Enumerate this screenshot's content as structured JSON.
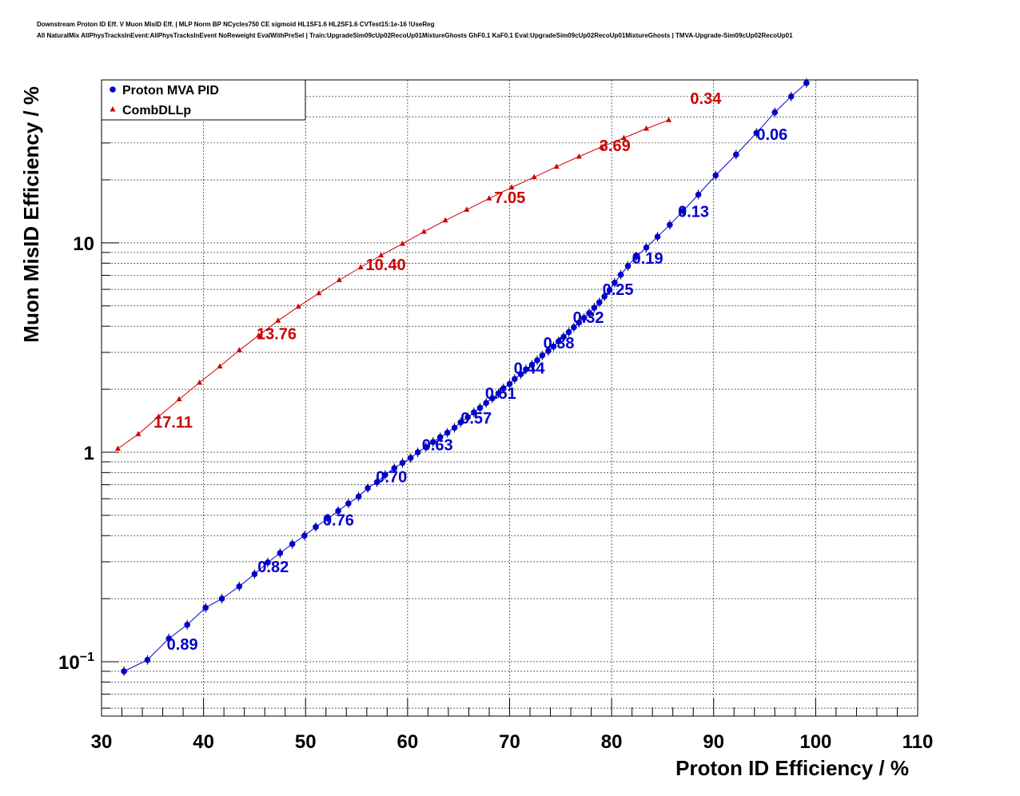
{
  "header": {
    "line1": "Downstream Proton ID Eff. V Muon MisID Eff. | MLP Norm BP NCycles750 CE sigmoid HL1SF1.6 HL2SF1.6 CVTest15:1e-16 !UseReg",
    "line2": "All NaturalMix AllPhysTracksInEvent:AllPhysTracksInEvent NoReweight EvalWithPreSel | Train:UpgradeSim09cUp02RecoUp01MixtureGhosts GhF0.1 KaF0.1 Eval:UpgradeSim09cUp02RecoUp01MixtureGhosts | TMVA-Upgrade-Sim09cUp02RecoUp01"
  },
  "chart_data": {
    "type": "scatter",
    "xlabel": "Proton ID Efficiency / %",
    "ylabel": "Muon MisID Efficiency / %",
    "xlim": [
      30,
      110
    ],
    "ylim": [
      0.055,
      60
    ],
    "ylog": true,
    "grid": true,
    "legend_position": "top-left",
    "x_ticks": [
      "30",
      "40",
      "50",
      "60",
      "70",
      "80",
      "90",
      "100",
      "110"
    ],
    "y_ticks": [
      {
        "value": 0.1,
        "base": "10",
        "exp": "−1"
      },
      {
        "value": 1,
        "base": "1",
        "exp": ""
      },
      {
        "value": 10,
        "base": "10",
        "exp": ""
      }
    ],
    "series": [
      {
        "name": "Proton MVA PID",
        "color": "#0000cc",
        "marker": "circle",
        "x": [
          32.2,
          34.5,
          36.6,
          38.4,
          40.2,
          41.8,
          43.5,
          45.0,
          46.3,
          47.5,
          48.7,
          49.9,
          51.0,
          52.2,
          53.2,
          54.2,
          55.2,
          56.1,
          57.0,
          57.8,
          58.7,
          59.5,
          60.3,
          61.0,
          61.8,
          62.5,
          63.2,
          63.9,
          64.6,
          65.2,
          65.9,
          66.5,
          67.1,
          67.7,
          68.3,
          68.9,
          69.4,
          70.0,
          70.5,
          71.1,
          71.6,
          72.2,
          72.7,
          73.2,
          73.8,
          74.3,
          74.8,
          75.3,
          75.8,
          76.3,
          76.8,
          77.3,
          77.8,
          78.3,
          78.8,
          79.3,
          79.8,
          80.3,
          80.9,
          81.6,
          82.4,
          83.4,
          84.5,
          85.7,
          87.0,
          88.5,
          90.2,
          92.2,
          94.2,
          96.0,
          97.6,
          99.1
        ],
        "y": [
          0.09,
          0.102,
          0.129,
          0.15,
          0.181,
          0.2,
          0.229,
          0.262,
          0.298,
          0.33,
          0.365,
          0.4,
          0.44,
          0.483,
          0.525,
          0.57,
          0.615,
          0.675,
          0.72,
          0.78,
          0.84,
          0.89,
          0.94,
          1.0,
          1.06,
          1.12,
          1.18,
          1.24,
          1.31,
          1.39,
          1.47,
          1.55,
          1.63,
          1.72,
          1.81,
          1.91,
          2.02,
          2.12,
          2.24,
          2.36,
          2.49,
          2.62,
          2.75,
          2.9,
          3.05,
          3.2,
          3.38,
          3.56,
          3.75,
          3.95,
          4.16,
          4.38,
          4.62,
          4.9,
          5.2,
          5.55,
          5.95,
          6.45,
          7.05,
          7.75,
          8.6,
          9.5,
          10.7,
          12.2,
          14.2,
          17.0,
          21.0,
          26.4,
          33.5,
          42.0,
          50.0,
          58.0
        ]
      },
      {
        "name": "CombDLLp",
        "color": "#cc0000",
        "marker": "triangle",
        "x": [
          31.6,
          33.6,
          35.6,
          37.6,
          39.6,
          41.6,
          43.5,
          45.4,
          47.3,
          49.3,
          51.3,
          53.3,
          55.4,
          57.4,
          59.5,
          61.6,
          63.7,
          65.8,
          68.0,
          70.2,
          72.4,
          74.6,
          76.8,
          79.0,
          81.2,
          83.4,
          85.6
        ],
        "y": [
          1.04,
          1.22,
          1.48,
          1.79,
          2.15,
          2.57,
          3.07,
          3.61,
          4.25,
          4.96,
          5.75,
          6.64,
          7.64,
          8.71,
          9.9,
          11.3,
          12.8,
          14.4,
          16.3,
          18.4,
          20.6,
          23.1,
          25.8,
          28.7,
          31.7,
          35.1,
          38.6
        ]
      }
    ],
    "annotations": [
      {
        "series": "Proton MVA PID",
        "text": "0.06",
        "x": 94.2,
        "y": 31.0
      },
      {
        "series": "Proton MVA PID",
        "text": "0.13",
        "x": 86.5,
        "y": 13.3
      },
      {
        "series": "Proton MVA PID",
        "text": "0.19",
        "x": 82.0,
        "y": 7.95
      },
      {
        "series": "Proton MVA PID",
        "text": "0.25",
        "x": 79.1,
        "y": 5.65
      },
      {
        "series": "Proton MVA PID",
        "text": "0.32",
        "x": 76.2,
        "y": 4.15
      },
      {
        "series": "Proton MVA PID",
        "text": "0.38",
        "x": 73.3,
        "y": 3.13
      },
      {
        "series": "Proton MVA PID",
        "text": "0.44",
        "x": 70.4,
        "y": 2.37
      },
      {
        "series": "Proton MVA PID",
        "text": "0.51",
        "x": 67.6,
        "y": 1.8
      },
      {
        "series": "Proton MVA PID",
        "text": "0.57",
        "x": 65.2,
        "y": 1.37
      },
      {
        "series": "Proton MVA PID",
        "text": "0.63",
        "x": 61.4,
        "y": 1.02
      },
      {
        "series": "Proton MVA PID",
        "text": "0.70",
        "x": 56.9,
        "y": 0.72
      },
      {
        "series": "Proton MVA PID",
        "text": "0.76",
        "x": 51.7,
        "y": 0.447
      },
      {
        "series": "Proton MVA PID",
        "text": "0.82",
        "x": 45.3,
        "y": 0.267
      },
      {
        "series": "Proton MVA PID",
        "text": "0.89",
        "x": 36.4,
        "y": 0.114
      },
      {
        "series": "CombDLLp",
        "text": "0.34",
        "x": 87.7,
        "y": 46.0
      },
      {
        "series": "CombDLLp",
        "text": "3.69",
        "x": 78.8,
        "y": 27.5
      },
      {
        "series": "CombDLLp",
        "text": "7.05",
        "x": 68.5,
        "y": 15.5
      },
      {
        "series": "CombDLLp",
        "text": "10.40",
        "x": 55.9,
        "y": 7.4
      },
      {
        "series": "CombDLLp",
        "text": "13.76",
        "x": 45.2,
        "y": 3.47
      },
      {
        "series": "CombDLLp",
        "text": "17.11",
        "x": 35.1,
        "y": 1.31
      }
    ]
  }
}
